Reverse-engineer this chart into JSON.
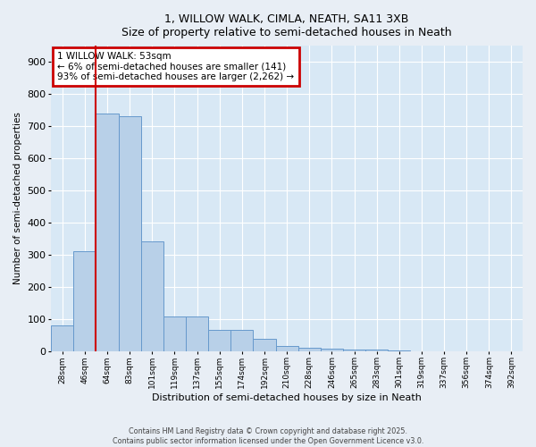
{
  "title_line1": "1, WILLOW WALK, CIMLA, NEATH, SA11 3XB",
  "title_line2": "Size of property relative to semi-detached houses in Neath",
  "xlabel": "Distribution of semi-detached houses by size in Neath",
  "ylabel": "Number of semi-detached properties",
  "categories": [
    "28sqm",
    "46sqm",
    "64sqm",
    "83sqm",
    "101sqm",
    "119sqm",
    "137sqm",
    "155sqm",
    "174sqm",
    "192sqm",
    "210sqm",
    "228sqm",
    "246sqm",
    "265sqm",
    "283sqm",
    "301sqm",
    "319sqm",
    "337sqm",
    "356sqm",
    "374sqm",
    "392sqm"
  ],
  "values": [
    80,
    310,
    740,
    730,
    340,
    108,
    108,
    65,
    65,
    37,
    15,
    10,
    7,
    5,
    3,
    2,
    0,
    0,
    0,
    0,
    0
  ],
  "bar_color": "#b8d0e8",
  "bar_edge_color": "#6699cc",
  "vline_x_idx": 1.5,
  "vline_color": "#cc0000",
  "annotation_title": "1 WILLOW WALK: 53sqm",
  "annotation_line1": "← 6% of semi-detached houses are smaller (141)",
  "annotation_line2": "93% of semi-detached houses are larger (2,262) →",
  "annotation_box_color": "#cc0000",
  "ylim": [
    0,
    950
  ],
  "yticks": [
    0,
    100,
    200,
    300,
    400,
    500,
    600,
    700,
    800,
    900
  ],
  "background_color": "#e8eef5",
  "plot_bg_color": "#d8e8f5",
  "grid_color": "#ffffff",
  "footer_line1": "Contains HM Land Registry data © Crown copyright and database right 2025.",
  "footer_line2": "Contains public sector information licensed under the Open Government Licence v3.0."
}
